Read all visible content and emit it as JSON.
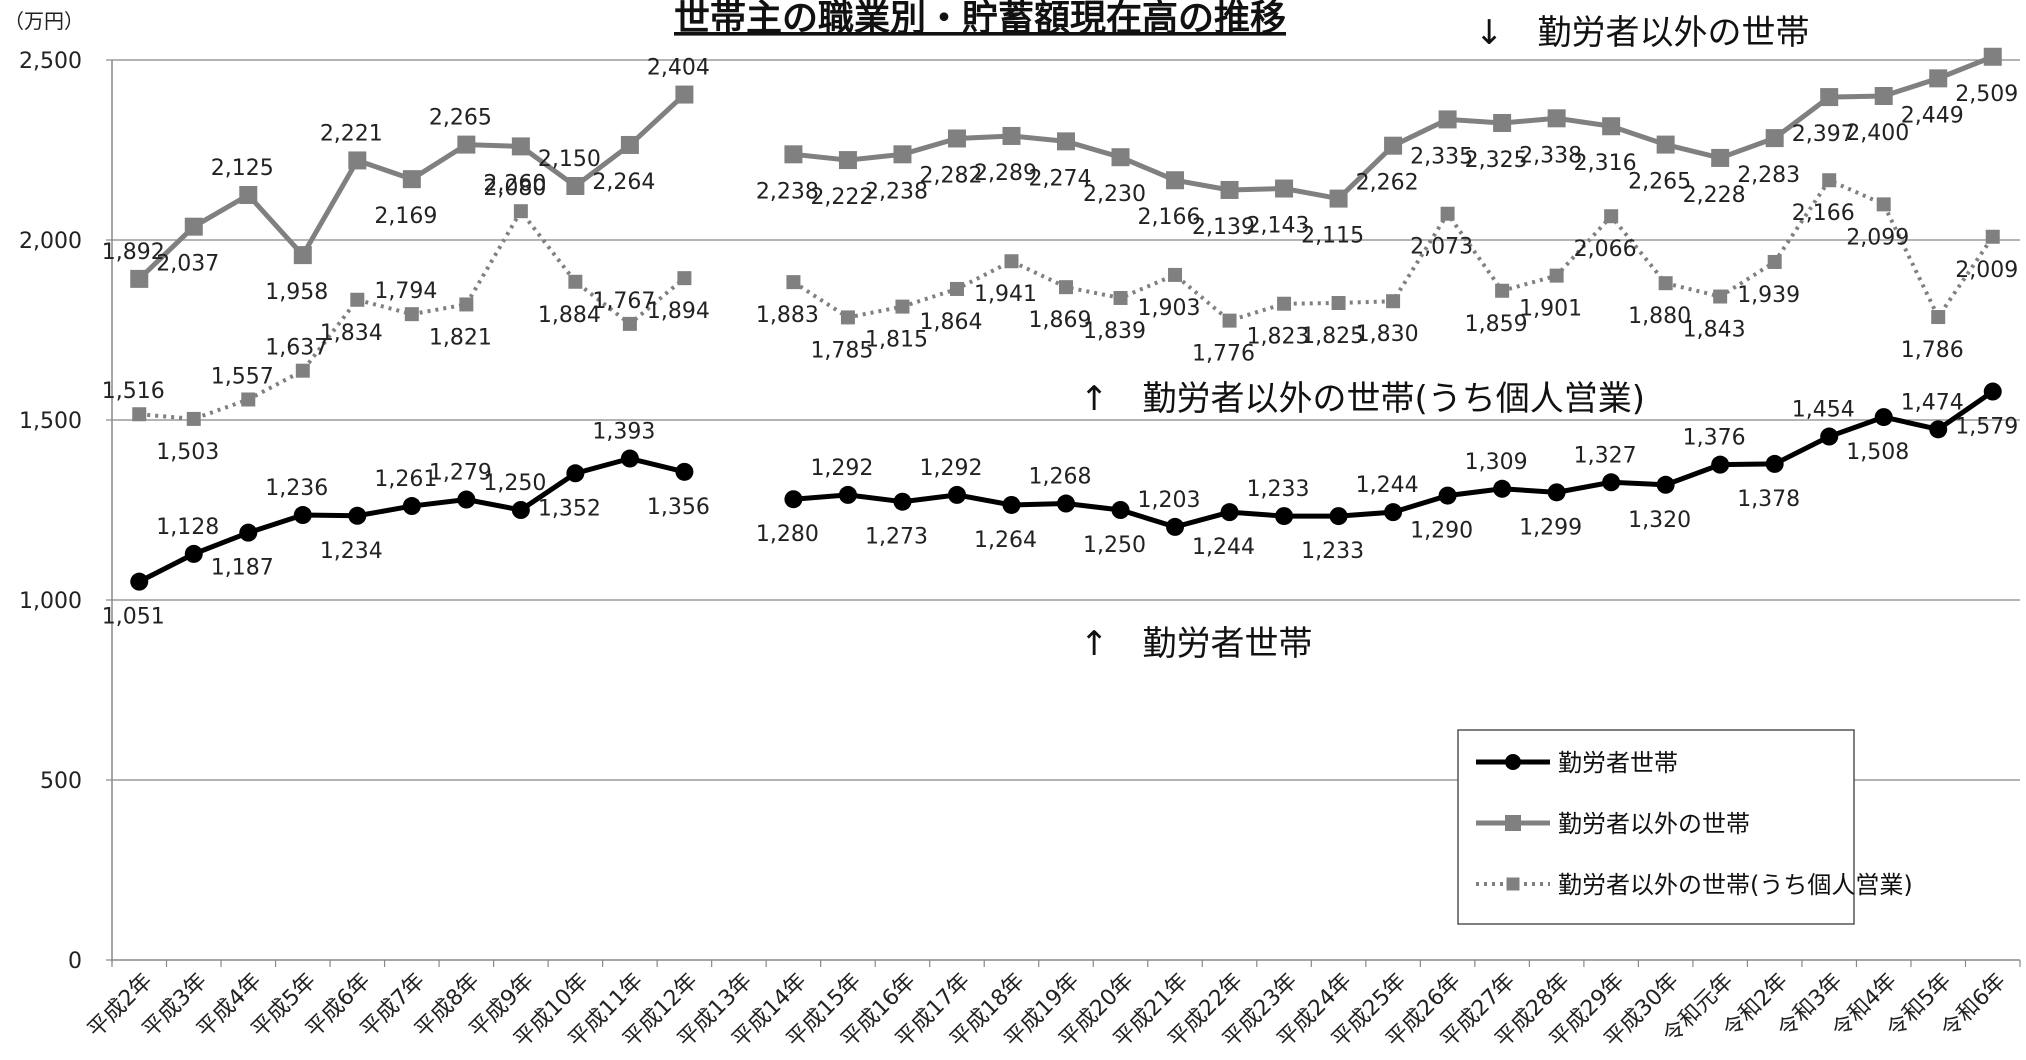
{
  "chart_data": {
    "type": "line",
    "title": "世帯主の職業別・貯蓄額現在高の推移",
    "unit": "（万円）",
    "ylim": [
      0,
      2500
    ],
    "yticks": [
      0,
      500,
      1000,
      1500,
      2000,
      2500
    ],
    "ytick_labels": [
      "0",
      "500",
      "1,000",
      "1,500",
      "2,000",
      "2,500"
    ],
    "grid": true,
    "legend_position": "bottom-right",
    "categories": [
      "平成2年",
      "平成3年",
      "平成4年",
      "平成5年",
      "平成6年",
      "平成7年",
      "平成8年",
      "平成9年",
      "平成10年",
      "平成11年",
      "平成12年",
      "平成13年",
      "平成14年",
      "平成15年",
      "平成16年",
      "平成17年",
      "平成18年",
      "平成19年",
      "平成20年",
      "平成21年",
      "平成22年",
      "平成23年",
      "平成24年",
      "平成25年",
      "平成26年",
      "平成27年",
      "平成28年",
      "平成29年",
      "平成30年",
      "令和元年",
      "令和2年",
      "令和3年",
      "令和4年",
      "令和5年",
      "令和6年"
    ],
    "series": [
      {
        "name": "勤労者世帯",
        "color": "#000000",
        "style": "solid-circle",
        "values": [
          1051,
          1128,
          1187,
          1236,
          1234,
          1261,
          1279,
          1250,
          1352,
          1393,
          1356,
          null,
          1280,
          1292,
          1273,
          1292,
          1264,
          1268,
          1250,
          1203,
          1244,
          1233,
          1233,
          1244,
          1290,
          1309,
          1299,
          1327,
          1320,
          1376,
          1378,
          1454,
          1508,
          1474,
          1579
        ],
        "value_labels": [
          "1,051",
          "1,128",
          "1,187",
          "1,236",
          "1,234",
          "1,261",
          "1,279",
          "1,250",
          "1,352",
          "1,393",
          "1,356",
          null,
          "1,280",
          "1,292",
          "1,273",
          "1,292",
          "1,264",
          "1,268",
          "1,250",
          "1,203",
          "1,244",
          "1,233",
          "1,233",
          "1,244",
          "1,290",
          "1,309",
          "1,299",
          "1,327",
          "1,320",
          "1,376",
          "1,378",
          "1,454",
          "1,508",
          "1,474",
          "1,579"
        ]
      },
      {
        "name": "勤労者以外の世帯",
        "color": "#808080",
        "style": "solid-square",
        "values": [
          1892,
          2037,
          2125,
          1958,
          2221,
          2169,
          2265,
          2260,
          2150,
          2264,
          2404,
          null,
          2238,
          2222,
          2238,
          2282,
          2289,
          2274,
          2230,
          2166,
          2139,
          2143,
          2115,
          2262,
          2335,
          2325,
          2338,
          2316,
          2265,
          2228,
          2283,
          2397,
          2400,
          2449,
          2509
        ],
        "value_labels": [
          "1,892",
          "2,037",
          "2,125",
          "1,958",
          "2,221",
          "2,169",
          "2,265",
          "2,260",
          "2,150",
          "2,264",
          "2,404",
          null,
          "2,238",
          "2,222",
          "2,238",
          "2,282",
          "2,289",
          "2,274",
          "2,230",
          "2,166",
          "2,139",
          "2,143",
          "2,115",
          "2,262",
          "2,335",
          "2,325",
          "2,338",
          "2,316",
          "2,265",
          "2,228",
          "2,283",
          "2,397",
          "2,400",
          "2,449",
          "2,509"
        ]
      },
      {
        "name": "勤労者以外の世帯(うち個人営業)",
        "color": "#808080",
        "style": "dotted-square",
        "values": [
          1516,
          1503,
          1557,
          1637,
          1834,
          1794,
          1821,
          2080,
          1884,
          1767,
          1894,
          null,
          1883,
          1785,
          1815,
          1864,
          1941,
          1869,
          1839,
          1903,
          1776,
          1823,
          1825,
          1830,
          2073,
          1859,
          1901,
          2066,
          1880,
          1843,
          1939,
          2166,
          2099,
          1786,
          2009
        ],
        "value_labels": [
          "1,516",
          "1,503",
          "1,557",
          "1,637",
          "1,834",
          "1,794",
          "1,821",
          "2,080",
          "1,884",
          "1,767",
          "1,894",
          null,
          "1,883",
          "1,785",
          "1,815",
          "1,864",
          "1,941",
          "1,869",
          "1,839",
          "1,903",
          "1,776",
          "1,823",
          "1,825",
          "1,830",
          "2,073",
          "1,859",
          "1,901",
          "2,066",
          "1,880",
          "1,843",
          "1,939",
          "2,166",
          "2,099",
          "1,786",
          "2,009"
        ]
      }
    ],
    "annotations": [
      {
        "text": "↓　勤労者以外の世帯"
      },
      {
        "text": "↑　勤労者以外の世帯(うち個人営業)"
      },
      {
        "text": "↑　勤労者世帯"
      }
    ]
  }
}
